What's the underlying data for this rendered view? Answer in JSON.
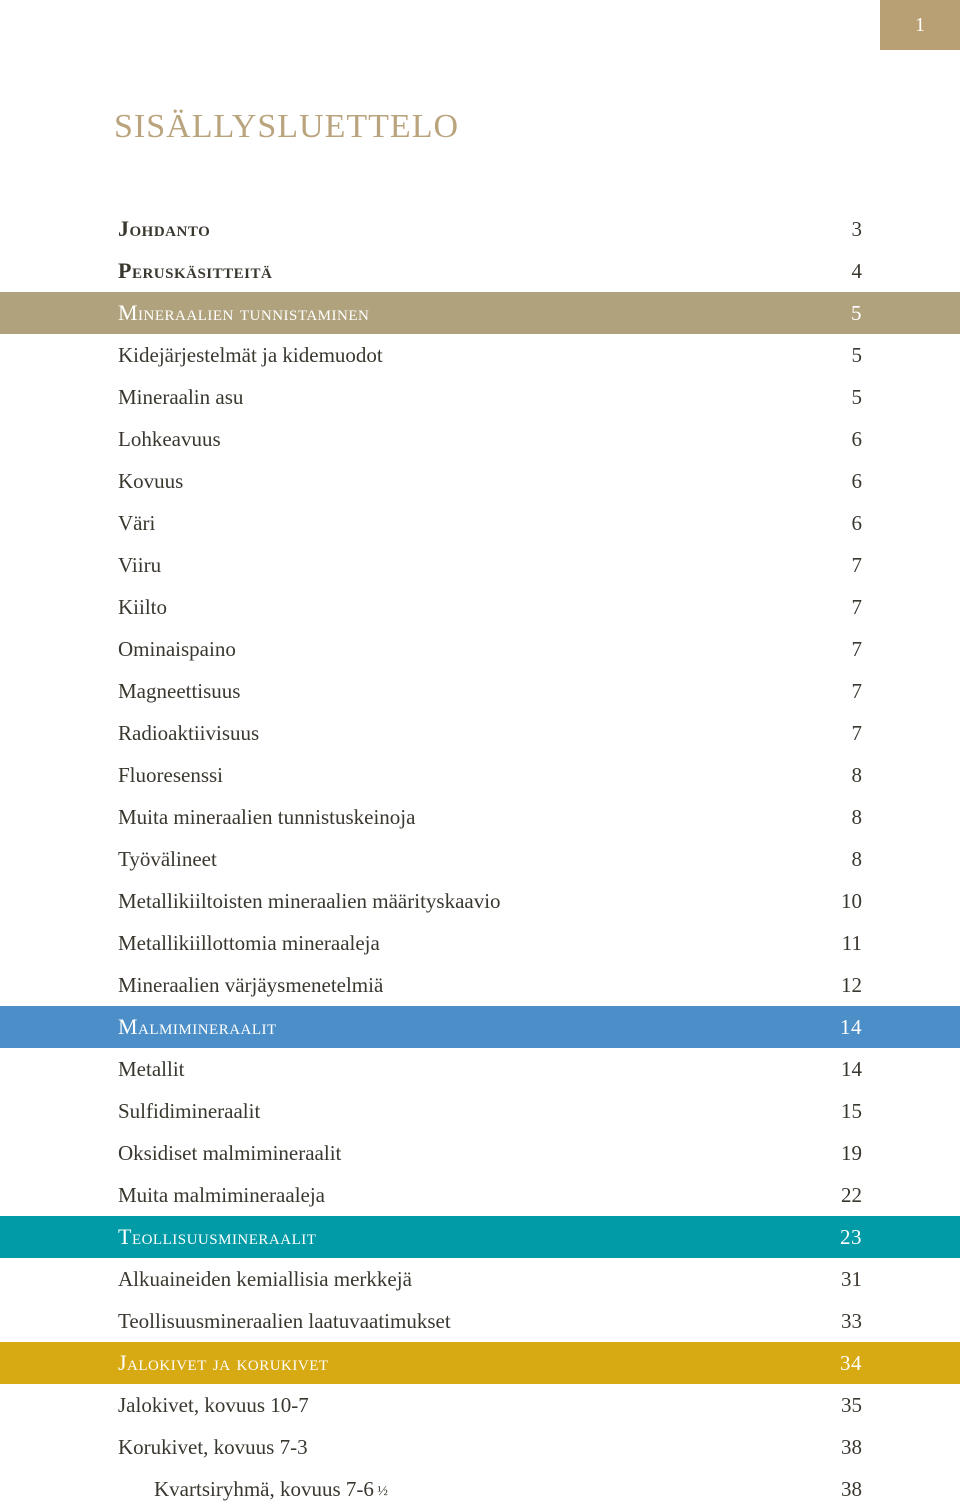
{
  "page_number": "1",
  "title": "SISÄLLYSLUETTELO",
  "colors": {
    "page_tab_bg": "#b89f74",
    "title_color": "#baa47e",
    "text_color": "#3a372f",
    "section1_bg": "#b0a27c",
    "section2_bg": "#4c8fc8",
    "section3_bg": "#009ba6",
    "section4_bg": "#d7a913"
  },
  "rows": [
    {
      "type": "bold",
      "label": "Johdanto",
      "page": "3"
    },
    {
      "type": "bold",
      "label": "Peruskäsitteitä",
      "page": "4"
    },
    {
      "type": "section",
      "label": "Mineraalien tunnistaminen",
      "page": "5",
      "bg": "#b0a27c"
    },
    {
      "type": "item",
      "label": "Kidejärjestelmät ja kidemuodot",
      "page": "5"
    },
    {
      "type": "item",
      "label": "Mineraalin asu",
      "page": "5"
    },
    {
      "type": "item",
      "label": "Lohkeavuus",
      "page": "6"
    },
    {
      "type": "item",
      "label": "Kovuus",
      "page": "6"
    },
    {
      "type": "item",
      "label": "Väri",
      "page": "6"
    },
    {
      "type": "item",
      "label": "Viiru",
      "page": "7"
    },
    {
      "type": "item",
      "label": "Kiilto",
      "page": "7"
    },
    {
      "type": "item",
      "label": "Ominaispaino",
      "page": "7"
    },
    {
      "type": "item",
      "label": "Magneettisuus",
      "page": "7"
    },
    {
      "type": "item",
      "label": "Radioaktiivisuus",
      "page": "7"
    },
    {
      "type": "item",
      "label": "Fluoresenssi",
      "page": "8"
    },
    {
      "type": "item",
      "label": "Muita mineraalien tunnistuskeinoja",
      "page": "8"
    },
    {
      "type": "item",
      "label": "Työvälineet",
      "page": "8"
    },
    {
      "type": "item",
      "label": "Metallikiiltoisten mineraalien määrityskaavio",
      "page": "10"
    },
    {
      "type": "item",
      "label": "Metallikiillottomia mineraaleja",
      "page": "11"
    },
    {
      "type": "item",
      "label": "Mineraalien värjäysmenetelmiä",
      "page": "12"
    },
    {
      "type": "section",
      "label": "Malmimineraalit",
      "page": "14",
      "bg": "#4c8fc8"
    },
    {
      "type": "item",
      "label": "Metallit",
      "page": "14"
    },
    {
      "type": "item",
      "label": "Sulfidimineraalit",
      "page": "15"
    },
    {
      "type": "item",
      "label": "Oksidiset malmimineraalit",
      "page": "19"
    },
    {
      "type": "item",
      "label": "Muita malmimineraaleja",
      "page": "22"
    },
    {
      "type": "section",
      "label": "Teollisuusmineraalit",
      "page": "23",
      "bg": "#009ba6"
    },
    {
      "type": "item",
      "label": "Alkuaineiden kemiallisia merkkejä",
      "page": "31"
    },
    {
      "type": "item",
      "label": "Teollisuusmineraalien laatuvaatimukset",
      "page": "33"
    },
    {
      "type": "section",
      "label": "Jalokivet ja korukivet",
      "page": "34",
      "bg": "#d7a913"
    },
    {
      "type": "item",
      "label": "Jalokivet, kovuus 10-7",
      "page": "35"
    },
    {
      "type": "item",
      "label": "Korukivet, kovuus 7-3",
      "page": "38"
    },
    {
      "type": "item2",
      "label": "Kvartsiryhmä, kovuus 7-6",
      "suffix": "½",
      "page": "38"
    }
  ]
}
